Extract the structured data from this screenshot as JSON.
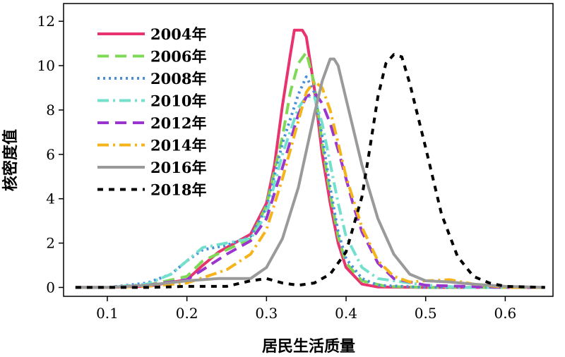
{
  "chart_data": {
    "type": "line",
    "title": "",
    "xlabel": "居民生活质量",
    "ylabel": "核密度值",
    "xlim": [
      0.045,
      0.66
    ],
    "ylim": [
      -0.4,
      12.8
    ],
    "x_ticks": [
      0.1,
      0.2,
      0.3,
      0.4,
      0.5,
      0.6
    ],
    "x_tick_labels": [
      "0.1",
      "0.2",
      "0.3",
      "0.4",
      "0.5",
      "0.6"
    ],
    "y_ticks": [
      0,
      2,
      4,
      6,
      8,
      10,
      12
    ],
    "y_tick_labels": [
      "0",
      "2",
      "4",
      "6",
      "8",
      "10",
      "12"
    ],
    "grid": false,
    "legend_position": "top-left",
    "series": [
      {
        "name": "2004年",
        "color": "#e8336e",
        "dash": "solid",
        "x": [
          0.06,
          0.1,
          0.15,
          0.2,
          0.22,
          0.24,
          0.26,
          0.28,
          0.3,
          0.31,
          0.32,
          0.33,
          0.335,
          0.345,
          0.35,
          0.36,
          0.37,
          0.38,
          0.39,
          0.4,
          0.42,
          0.44,
          0.5,
          0.55,
          0.6,
          0.65
        ],
        "y": [
          0,
          0,
          0.05,
          0.35,
          1.0,
          1.6,
          2.0,
          2.4,
          3.8,
          5.5,
          8.2,
          10.5,
          11.6,
          11.6,
          11.3,
          9.0,
          6.0,
          3.8,
          2.0,
          0.9,
          0.15,
          0.02,
          0,
          0,
          0,
          0
        ]
      },
      {
        "name": "2006年",
        "color": "#7ed957",
        "dash": "long",
        "x": [
          0.06,
          0.1,
          0.15,
          0.2,
          0.22,
          0.25,
          0.28,
          0.3,
          0.32,
          0.33,
          0.34,
          0.35,
          0.36,
          0.37,
          0.38,
          0.39,
          0.4,
          0.42,
          0.45,
          0.5,
          0.55,
          0.6,
          0.65
        ],
        "y": [
          0,
          0,
          0.1,
          0.5,
          1.2,
          1.7,
          2.2,
          3.7,
          6.8,
          8.8,
          10.1,
          10.6,
          9.2,
          6.5,
          4.2,
          2.3,
          1.1,
          0.3,
          0.05,
          0,
          0,
          0,
          0
        ]
      },
      {
        "name": "2008年",
        "color": "#4a90d9",
        "dash": "dot",
        "x": [
          0.06,
          0.1,
          0.15,
          0.18,
          0.2,
          0.22,
          0.25,
          0.28,
          0.3,
          0.32,
          0.34,
          0.35,
          0.36,
          0.37,
          0.38,
          0.39,
          0.4,
          0.42,
          0.44,
          0.5,
          0.55,
          0.6,
          0.65
        ],
        "y": [
          0,
          0,
          0.2,
          0.6,
          1.2,
          1.7,
          1.9,
          2.3,
          3.6,
          6.5,
          8.7,
          9.5,
          8.8,
          6.8,
          4.5,
          2.5,
          1.3,
          0.4,
          0.1,
          0,
          0,
          0,
          0
        ]
      },
      {
        "name": "2010年",
        "color": "#72e0cd",
        "dash": "dashdot",
        "x": [
          0.06,
          0.1,
          0.15,
          0.18,
          0.2,
          0.22,
          0.25,
          0.28,
          0.3,
          0.32,
          0.34,
          0.35,
          0.36,
          0.37,
          0.38,
          0.39,
          0.4,
          0.42,
          0.44,
          0.5,
          0.55,
          0.6,
          0.65
        ],
        "y": [
          0,
          0,
          0.15,
          0.6,
          1.2,
          1.8,
          2.0,
          2.2,
          3.3,
          6.0,
          8.1,
          8.6,
          8.6,
          7.4,
          5.6,
          3.8,
          2.3,
          0.9,
          0.4,
          0.1,
          0,
          0,
          0
        ]
      },
      {
        "name": "2012年",
        "color": "#9b35d0",
        "dash": "long",
        "x": [
          0.06,
          0.1,
          0.15,
          0.2,
          0.22,
          0.25,
          0.28,
          0.3,
          0.32,
          0.34,
          0.35,
          0.36,
          0.37,
          0.38,
          0.39,
          0.4,
          0.41,
          0.42,
          0.44,
          0.46,
          0.5,
          0.55,
          0.6,
          0.65
        ],
        "y": [
          0,
          0,
          0.1,
          0.35,
          0.8,
          1.5,
          2.1,
          3.1,
          5.4,
          7.8,
          8.6,
          8.8,
          8.3,
          7.4,
          6.2,
          4.9,
          3.6,
          2.5,
          1.1,
          0.4,
          0.1,
          0.05,
          0,
          0
        ]
      },
      {
        "name": "2014年",
        "color": "#f4b41a",
        "dash": "dashdot",
        "x": [
          0.06,
          0.1,
          0.15,
          0.2,
          0.25,
          0.28,
          0.3,
          0.32,
          0.34,
          0.35,
          0.36,
          0.37,
          0.38,
          0.39,
          0.4,
          0.42,
          0.44,
          0.46,
          0.48,
          0.5,
          0.53,
          0.56,
          0.6,
          0.65
        ],
        "y": [
          0,
          0,
          0.05,
          0.2,
          0.8,
          1.5,
          2.6,
          4.9,
          7.5,
          8.8,
          9.3,
          9.0,
          8.0,
          6.5,
          5.0,
          2.7,
          1.2,
          0.5,
          0.25,
          0.3,
          0.35,
          0.15,
          0,
          0
        ]
      },
      {
        "name": "2016年",
        "color": "#9a9a9a",
        "dash": "solid",
        "x": [
          0.06,
          0.1,
          0.15,
          0.2,
          0.24,
          0.28,
          0.3,
          0.32,
          0.34,
          0.36,
          0.37,
          0.38,
          0.385,
          0.39,
          0.4,
          0.42,
          0.44,
          0.46,
          0.48,
          0.5,
          0.53,
          0.56,
          0.6,
          0.65
        ],
        "y": [
          0,
          0,
          0.1,
          0.3,
          0.4,
          0.4,
          0.9,
          2.2,
          4.5,
          7.8,
          9.3,
          10.3,
          10.3,
          10.0,
          8.5,
          5.5,
          3.1,
          1.5,
          0.6,
          0.3,
          0.25,
          0.15,
          0.05,
          0
        ]
      },
      {
        "name": "2018年",
        "color": "#000000",
        "dash": "short",
        "x": [
          0.06,
          0.1,
          0.15,
          0.2,
          0.25,
          0.28,
          0.3,
          0.32,
          0.34,
          0.36,
          0.38,
          0.4,
          0.42,
          0.43,
          0.44,
          0.45,
          0.46,
          0.47,
          0.48,
          0.5,
          0.52,
          0.54,
          0.56,
          0.58,
          0.6,
          0.65
        ],
        "y": [
          0,
          0,
          0,
          0.05,
          0.05,
          0.3,
          0.4,
          0.2,
          0.1,
          0.2,
          0.6,
          1.6,
          4.1,
          6.3,
          8.6,
          10.1,
          10.5,
          10.4,
          9.2,
          6.3,
          3.3,
          1.4,
          0.5,
          0.2,
          0.05,
          0
        ]
      }
    ]
  }
}
